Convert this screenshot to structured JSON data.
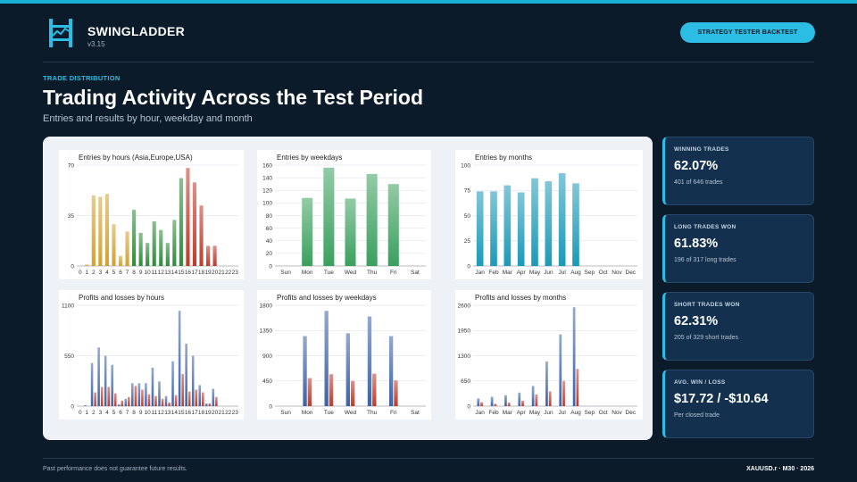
{
  "header": {
    "brand": "SWINGLADDER",
    "version": "v3.15",
    "logo_icon": "ladder-chart-icon",
    "badge": "STRATEGY TESTER BACKTEST"
  },
  "section": {
    "eyebrow": "TRADE DISTRIBUTION",
    "title": "Trading Activity Across the Test Period",
    "subtitle": "Entries and results by hour, weekday and month"
  },
  "stats": [
    {
      "label": "WINNING TRADES",
      "value": "62.07%",
      "sub": "401 of 646 trades"
    },
    {
      "label": "LONG TRADES WON",
      "value": "61.83%",
      "sub": "196 of 317 long trades"
    },
    {
      "label": "SHORT TRADES WON",
      "value": "62.31%",
      "sub": "205 of 329 short trades"
    },
    {
      "label": "AVG. WIN / LOSS",
      "value": "$17.72 / -$10.64",
      "sub": "Per closed trade"
    }
  ],
  "footer": {
    "disclaimer": "Past performance does not guarantee future results.",
    "symbol": "XAUUSD.r · M30 · 2026"
  },
  "colors": {
    "accent": "#2bbde3",
    "asia": "#d4a030",
    "europe": "#2e8b3a",
    "usa": "#c0392b",
    "weekday": "#3aa05e",
    "month": "#1b9ab8",
    "profit": "#3d62a8",
    "loss": "#c0392b"
  },
  "chart_data": [
    {
      "type": "bar",
      "title": "Entries by hours (Asia,Europe,USA)",
      "categories": [
        "0",
        "1",
        "2",
        "3",
        "4",
        "5",
        "6",
        "7",
        "8",
        "9",
        "10",
        "11",
        "12",
        "13",
        "14",
        "15",
        "16",
        "17",
        "18",
        "19",
        "20",
        "21",
        "22",
        "23"
      ],
      "values": [
        0,
        1,
        49,
        48,
        50,
        29,
        7,
        24,
        39,
        23,
        16,
        31,
        25,
        16,
        32,
        61,
        68,
        58,
        42,
        14,
        14,
        0,
        0,
        0
      ],
      "ylim": [
        0,
        70
      ],
      "yticks": [
        0,
        35,
        70
      ]
    },
    {
      "type": "bar",
      "title": "Entries by weekdays",
      "categories": [
        "Sun",
        "Mon",
        "Tue",
        "Wed",
        "Thu",
        "Fri",
        "Sat"
      ],
      "values": [
        0,
        108,
        156,
        107,
        146,
        130,
        0
      ],
      "ylim": [
        0,
        160
      ],
      "yticks": [
        0,
        20,
        40,
        60,
        80,
        100,
        120,
        140,
        160
      ]
    },
    {
      "type": "bar",
      "title": "Entries by months",
      "categories": [
        "Jan",
        "Feb",
        "Mar",
        "Apr",
        "May",
        "Jun",
        "Jul",
        "Aug",
        "Sep",
        "Oct",
        "Nov",
        "Dec"
      ],
      "values": [
        74,
        74,
        80,
        73,
        87,
        84,
        92,
        82,
        0,
        0,
        0,
        0
      ],
      "ylim": [
        0,
        100
      ],
      "yticks": [
        0,
        25,
        50,
        75,
        100
      ]
    },
    {
      "type": "bar",
      "title": "Profits and losses by hours",
      "categories": [
        "0",
        "1",
        "2",
        "3",
        "4",
        "5",
        "6",
        "7",
        "8",
        "9",
        "10",
        "11",
        "12",
        "13",
        "14",
        "15",
        "16",
        "17",
        "18",
        "19",
        "20",
        "21",
        "22",
        "23"
      ],
      "ylim": [
        0,
        1100
      ],
      "yticks": [
        0,
        550,
        1100
      ],
      "series": [
        {
          "values": [
            0,
            10,
            470,
            640,
            550,
            450,
            20,
            80,
            250,
            250,
            250,
            420,
            270,
            110,
            490,
            1040,
            680,
            550,
            230,
            30,
            190,
            0,
            0,
            0
          ]
        },
        {
          "values": [
            0,
            0,
            150,
            210,
            210,
            140,
            60,
            100,
            220,
            180,
            130,
            110,
            80,
            40,
            120,
            350,
            160,
            180,
            150,
            30,
            100,
            0,
            0,
            0
          ]
        }
      ]
    },
    {
      "type": "bar",
      "title": "Profits and losses by weekdays",
      "categories": [
        "Sun",
        "Mon",
        "Tue",
        "Wed",
        "Thu",
        "Fri",
        "Sat"
      ],
      "ylim": [
        0,
        1800
      ],
      "yticks": [
        0,
        450,
        900,
        1350,
        1800
      ],
      "series": [
        {
          "values": [
            0,
            1250,
            1700,
            1300,
            1600,
            1250,
            0
          ]
        },
        {
          "values": [
            0,
            500,
            570,
            450,
            580,
            460,
            0
          ]
        }
      ]
    },
    {
      "type": "bar",
      "title": "Profits and losses by months",
      "categories": [
        "Jan",
        "Feb",
        "Mar",
        "Apr",
        "May",
        "Jun",
        "Jul",
        "Aug",
        "Sep",
        "Oct",
        "Nov",
        "Dec"
      ],
      "ylim": [
        0,
        2600
      ],
      "yticks": [
        0,
        650,
        1300,
        1950,
        2600
      ],
      "series": [
        {
          "values": [
            200,
            240,
            280,
            350,
            520,
            1150,
            1850,
            2550,
            0,
            0,
            0,
            0
          ]
        },
        {
          "values": [
            100,
            60,
            90,
            140,
            300,
            380,
            650,
            960,
            0,
            0,
            0,
            0
          ]
        }
      ]
    }
  ]
}
